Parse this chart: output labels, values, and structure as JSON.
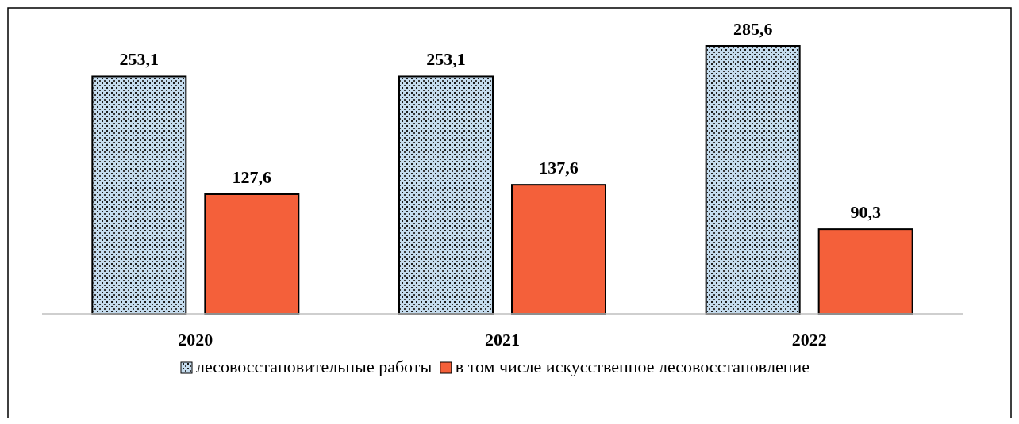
{
  "chart_data": {
    "type": "bar",
    "categories": [
      "2020",
      "2021",
      "2022"
    ],
    "series": [
      {
        "name": "лесовосстановительные работы",
        "color": "#c5dcee",
        "values": [
          253.1,
          253.1,
          285.6
        ],
        "value_labels": [
          "253,1",
          "253,1",
          "285,6"
        ]
      },
      {
        "name": "в том числе искусственное лесовосстановление",
        "color": "#f4603a",
        "values": [
          127.6,
          137.6,
          90.3
        ],
        "value_labels": [
          "127,6",
          "137,6",
          "90,3"
        ]
      }
    ],
    "legend": "bottom"
  }
}
